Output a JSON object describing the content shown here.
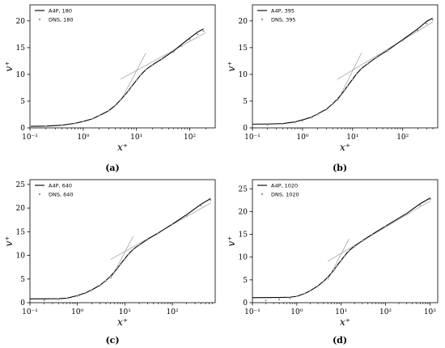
{
  "chart_data": [
    {
      "type": "line",
      "caption": "(a)",
      "xlabel": "x⁺",
      "ylabel": "v⁺",
      "xscale": "log",
      "xlim": [
        0.1,
        300
      ],
      "ylim": [
        0,
        23
      ],
      "x_ticks": [
        0.1,
        1,
        10,
        100
      ],
      "x_tick_labels": [
        "10⁻¹",
        "10⁰",
        "10¹",
        "10²"
      ],
      "y_ticks": [
        0,
        5,
        10,
        15,
        20
      ],
      "legend_position": "top-left",
      "series": [
        {
          "name": "A4P, 180",
          "style": "solid-black",
          "points": [
            [
              0.1,
              0.3
            ],
            [
              0.2,
              0.33
            ],
            [
              0.4,
              0.5
            ],
            [
              0.7,
              0.85
            ],
            [
              1,
              1.2
            ],
            [
              1.5,
              1.7
            ],
            [
              2,
              2.3
            ],
            [
              3,
              3.2
            ],
            [
              4,
              4.2
            ],
            [
              5,
              5.2
            ],
            [
              6,
              6.1
            ],
            [
              7,
              6.9
            ],
            [
              8,
              7.7
            ],
            [
              10,
              8.9
            ],
            [
              12,
              9.9
            ],
            [
              15,
              10.9
            ],
            [
              20,
              11.8
            ],
            [
              30,
              12.9
            ],
            [
              50,
              14.4
            ],
            [
              70,
              15.6
            ],
            [
              100,
              16.8
            ],
            [
              140,
              17.9
            ],
            [
              180,
              18.5
            ]
          ]
        },
        {
          "name": "DNS, 180",
          "style": "grey-dots",
          "points": [
            [
              0.1,
              0.3
            ],
            [
              0.2,
              0.33
            ],
            [
              0.4,
              0.5
            ],
            [
              0.7,
              0.85
            ],
            [
              1,
              1.2
            ],
            [
              1.5,
              1.7
            ],
            [
              2,
              2.3
            ],
            [
              3,
              3.2
            ],
            [
              4,
              4.2
            ],
            [
              5,
              5.2
            ],
            [
              6,
              6.1
            ],
            [
              7,
              6.9
            ],
            [
              8,
              7.7
            ],
            [
              10,
              8.9
            ],
            [
              12,
              9.9
            ],
            [
              15,
              10.9
            ],
            [
              20,
              11.7
            ],
            [
              30,
              12.8
            ],
            [
              50,
              14.2
            ],
            [
              70,
              15.3
            ],
            [
              100,
              16.5
            ],
            [
              140,
              17.5
            ],
            [
              180,
              18.1
            ]
          ]
        }
      ],
      "reference_lines": [
        {
          "points": [
            [
              5,
              5
            ],
            [
              15,
              14
            ]
          ]
        },
        {
          "points": [
            [
              5,
              9.1
            ],
            [
              200,
              17.8
            ]
          ]
        }
      ]
    },
    {
      "type": "line",
      "caption": "(b)",
      "xlabel": "x⁺",
      "ylabel": "v⁺",
      "xscale": "log",
      "xlim": [
        0.1,
        500
      ],
      "ylim": [
        0,
        23
      ],
      "x_ticks": [
        0.1,
        1,
        10,
        100
      ],
      "x_tick_labels": [
        "10⁻¹",
        "10⁰",
        "10¹",
        "10²"
      ],
      "y_ticks": [
        0,
        5,
        10,
        15,
        20
      ],
      "legend_position": "top-left",
      "series": [
        {
          "name": "A4P, 395",
          "style": "solid-black",
          "points": [
            [
              0.1,
              0.7
            ],
            [
              0.2,
              0.72
            ],
            [
              0.4,
              0.8
            ],
            [
              0.7,
              1.1
            ],
            [
              1,
              1.5
            ],
            [
              1.5,
              2
            ],
            [
              2,
              2.6
            ],
            [
              3,
              3.5
            ],
            [
              4,
              4.5
            ],
            [
              5,
              5.4
            ],
            [
              6,
              6.3
            ],
            [
              7,
              7.1
            ],
            [
              8,
              7.9
            ],
            [
              10,
              9.1
            ],
            [
              12,
              10.1
            ],
            [
              15,
              11.1
            ],
            [
              20,
              12
            ],
            [
              30,
              13.2
            ],
            [
              50,
              14.5
            ],
            [
              100,
              16.5
            ],
            [
              200,
              18.5
            ],
            [
              300,
              19.9
            ],
            [
              395,
              20.5
            ]
          ]
        },
        {
          "name": "DNS, 395",
          "style": "grey-dots",
          "points": [
            [
              0.1,
              0.5
            ],
            [
              0.2,
              0.55
            ],
            [
              0.4,
              0.7
            ],
            [
              0.7,
              1
            ],
            [
              1,
              1.3
            ],
            [
              1.5,
              1.9
            ],
            [
              2,
              2.5
            ],
            [
              3,
              3.4
            ],
            [
              4,
              4.4
            ],
            [
              5,
              5.3
            ],
            [
              6,
              6.2
            ],
            [
              7,
              7
            ],
            [
              8,
              7.8
            ],
            [
              10,
              9
            ],
            [
              12,
              10
            ],
            [
              15,
              11
            ],
            [
              20,
              11.9
            ],
            [
              30,
              13.1
            ],
            [
              50,
              14.4
            ],
            [
              100,
              16.3
            ],
            [
              200,
              18.2
            ],
            [
              300,
              19.5
            ],
            [
              395,
              20.2
            ]
          ]
        }
      ],
      "reference_lines": [
        {
          "points": [
            [
              5,
              5
            ],
            [
              15,
              14
            ]
          ]
        },
        {
          "points": [
            [
              5,
              9.1
            ],
            [
              400,
              19.8
            ]
          ]
        }
      ]
    },
    {
      "type": "line",
      "caption": "(c)",
      "xlabel": "x⁺",
      "ylabel": "v⁺",
      "xscale": "log",
      "xlim": [
        0.1,
        800
      ],
      "ylim": [
        0,
        26
      ],
      "x_ticks": [
        0.1,
        1,
        10,
        100
      ],
      "x_tick_labels": [
        "10⁻¹",
        "10⁰",
        "10¹",
        "10²"
      ],
      "y_ticks": [
        0,
        5,
        10,
        15,
        20,
        25
      ],
      "legend_position": "top-left",
      "series": [
        {
          "name": "A4P, 640",
          "style": "solid-black",
          "points": [
            [
              0.1,
              0.8
            ],
            [
              0.2,
              0.82
            ],
            [
              0.4,
              0.85
            ],
            [
              0.6,
              0.95
            ],
            [
              1,
              1.5
            ],
            [
              1.5,
              2.1
            ],
            [
              2,
              2.7
            ],
            [
              3,
              3.7
            ],
            [
              4,
              4.7
            ],
            [
              5,
              5.6
            ],
            [
              6,
              6.5
            ],
            [
              7,
              7.3
            ],
            [
              8,
              8.1
            ],
            [
              10,
              9.3
            ],
            [
              12,
              10.3
            ],
            [
              15,
              11.3
            ],
            [
              20,
              12.2
            ],
            [
              30,
              13.4
            ],
            [
              50,
              14.7
            ],
            [
              100,
              16.6
            ],
            [
              200,
              18.6
            ],
            [
              400,
              20.8
            ],
            [
              640,
              22
            ]
          ]
        },
        {
          "name": "DNS, 640",
          "style": "grey-dots",
          "points": [
            [
              0.1,
              0.4
            ],
            [
              0.2,
              0.5
            ],
            [
              0.4,
              0.7
            ],
            [
              0.6,
              0.9
            ],
            [
              1,
              1.4
            ],
            [
              1.5,
              2
            ],
            [
              2,
              2.6
            ],
            [
              3,
              3.6
            ],
            [
              4,
              4.6
            ],
            [
              5,
              5.5
            ],
            [
              6,
              6.4
            ],
            [
              7,
              7.2
            ],
            [
              8,
              8
            ],
            [
              10,
              9.2
            ],
            [
              12,
              10.2
            ],
            [
              15,
              11.2
            ],
            [
              20,
              12.1
            ],
            [
              30,
              13.3
            ],
            [
              50,
              14.6
            ],
            [
              100,
              16.5
            ],
            [
              200,
              18.4
            ],
            [
              400,
              20.5
            ],
            [
              640,
              21.7
            ]
          ]
        }
      ],
      "reference_lines": [
        {
          "points": [
            [
              5,
              5
            ],
            [
              15,
              14
            ]
          ]
        },
        {
          "points": [
            [
              5,
              9.1
            ],
            [
              650,
              21.1
            ]
          ]
        }
      ]
    },
    {
      "type": "line",
      "caption": "(d)",
      "xlabel": "x⁺",
      "ylabel": "v⁺",
      "xscale": "log",
      "xlim": [
        0.1,
        1500
      ],
      "ylim": [
        0,
        27
      ],
      "x_ticks": [
        0.1,
        1,
        10,
        100,
        1000
      ],
      "x_tick_labels": [
        "10⁻¹",
        "10⁰",
        "10¹",
        "10²",
        "10³"
      ],
      "y_ticks": [
        0,
        5,
        10,
        15,
        20,
        25
      ],
      "legend_position": "top-left",
      "series": [
        {
          "name": "A4P, 1020",
          "style": "solid-black",
          "points": [
            [
              0.1,
              1.1
            ],
            [
              0.2,
              1.12
            ],
            [
              0.4,
              1.15
            ],
            [
              0.7,
              1.2
            ],
            [
              1,
              1.4
            ],
            [
              1.5,
              2
            ],
            [
              2,
              2.6
            ],
            [
              3,
              3.7
            ],
            [
              4,
              4.7
            ],
            [
              5,
              5.6
            ],
            [
              6,
              6.5
            ],
            [
              7,
              7.3
            ],
            [
              8,
              8.1
            ],
            [
              10,
              9.3
            ],
            [
              12,
              10.3
            ],
            [
              15,
              11.4
            ],
            [
              20,
              12.4
            ],
            [
              30,
              13.6
            ],
            [
              50,
              15
            ],
            [
              100,
              16.8
            ],
            [
              300,
              19.6
            ],
            [
              600,
              21.7
            ],
            [
              1020,
              23
            ]
          ]
        },
        {
          "name": "DNS, 1020",
          "style": "grey-dots",
          "points": [
            [
              0.1,
              0.4
            ],
            [
              0.2,
              0.5
            ],
            [
              0.4,
              0.7
            ],
            [
              0.7,
              1
            ],
            [
              1,
              1.4
            ],
            [
              1.5,
              2
            ],
            [
              2,
              2.6
            ],
            [
              3,
              3.6
            ],
            [
              4,
              4.6
            ],
            [
              5,
              5.5
            ],
            [
              6,
              6.4
            ],
            [
              7,
              7.2
            ],
            [
              8,
              8
            ],
            [
              10,
              9.2
            ],
            [
              12,
              10.2
            ],
            [
              15,
              11.3
            ],
            [
              20,
              12.3
            ],
            [
              30,
              13.5
            ],
            [
              50,
              14.9
            ],
            [
              100,
              16.7
            ],
            [
              300,
              19.4
            ],
            [
              600,
              21.4
            ],
            [
              1020,
              22.7
            ]
          ]
        }
      ],
      "reference_lines": [
        {
          "points": [
            [
              5,
              5
            ],
            [
              15,
              14
            ]
          ]
        },
        {
          "points": [
            [
              5,
              9.1
            ],
            [
              1000,
              22.3
            ]
          ]
        }
      ]
    }
  ]
}
